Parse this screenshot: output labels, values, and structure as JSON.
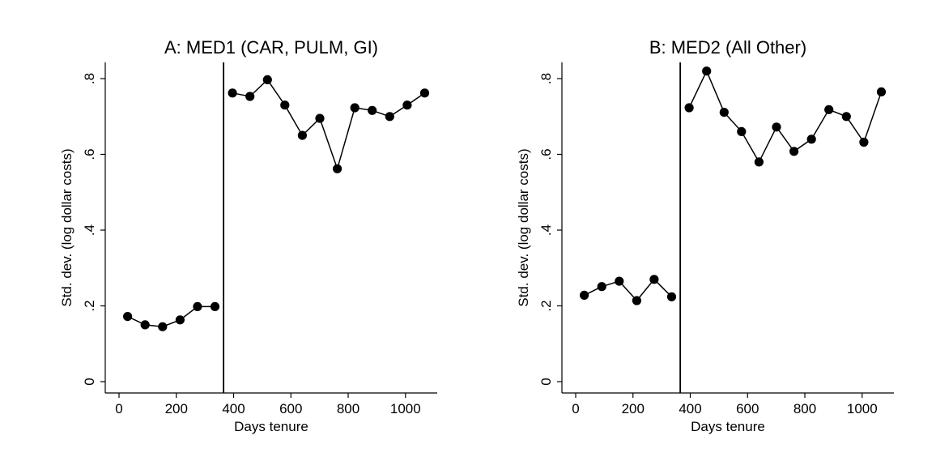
{
  "chart_data": [
    {
      "type": "line",
      "title": "A: MED1 (CAR, PULM, GI)",
      "xlabel": "Days tenure",
      "ylabel": "Std. dev. (log dollar costs)",
      "xlim": [
        0,
        1080
      ],
      "ylim": [
        0,
        0.8
      ],
      "xticks": [
        0,
        200,
        400,
        600,
        800,
        1000
      ],
      "xtick_labels": [
        "0",
        "200",
        "400",
        "600",
        "800",
        "1000"
      ],
      "yticks": [
        0,
        0.2,
        0.4,
        0.6,
        0.8
      ],
      "ytick_labels": [
        "0",
        ".2",
        ".4",
        ".6",
        ".8"
      ],
      "cutoff_x": 365,
      "grid": false,
      "marker": "filled-circle",
      "color": "#000000",
      "segments": [
        {
          "x": [
            30,
            91,
            152,
            213,
            274,
            335
          ],
          "y": [
            0.172,
            0.15,
            0.145,
            0.163,
            0.198,
            0.198
          ]
        },
        {
          "x": [
            396,
            457,
            518,
            579,
            640,
            701,
            762,
            823,
            884,
            945,
            1006,
            1067
          ],
          "y": [
            0.762,
            0.753,
            0.797,
            0.73,
            0.65,
            0.695,
            0.562,
            0.723,
            0.716,
            0.7,
            0.73,
            0.762
          ]
        }
      ]
    },
    {
      "type": "line",
      "title": "B: MED2 (All Other)",
      "xlabel": "Days tenure",
      "ylabel": "Std. dev. (log dollar costs)",
      "xlim": [
        0,
        1080
      ],
      "ylim": [
        0,
        0.8
      ],
      "xticks": [
        0,
        200,
        400,
        600,
        800,
        1000
      ],
      "xtick_labels": [
        "0",
        "200",
        "400",
        "600",
        "800",
        "1000"
      ],
      "yticks": [
        0,
        0.2,
        0.4,
        0.6,
        0.8
      ],
      "ytick_labels": [
        "0",
        ".2",
        ".4",
        ".6",
        ".8"
      ],
      "cutoff_x": 365,
      "grid": false,
      "marker": "filled-circle",
      "color": "#000000",
      "segments": [
        {
          "x": [
            30,
            91,
            152,
            213,
            274,
            335
          ],
          "y": [
            0.228,
            0.251,
            0.265,
            0.214,
            0.27,
            0.224
          ]
        },
        {
          "x": [
            396,
            457,
            518,
            579,
            640,
            701,
            762,
            823,
            884,
            945,
            1006,
            1067
          ],
          "y": [
            0.723,
            0.82,
            0.711,
            0.66,
            0.58,
            0.672,
            0.608,
            0.64,
            0.718,
            0.7,
            0.632,
            0.765
          ]
        }
      ]
    }
  ]
}
